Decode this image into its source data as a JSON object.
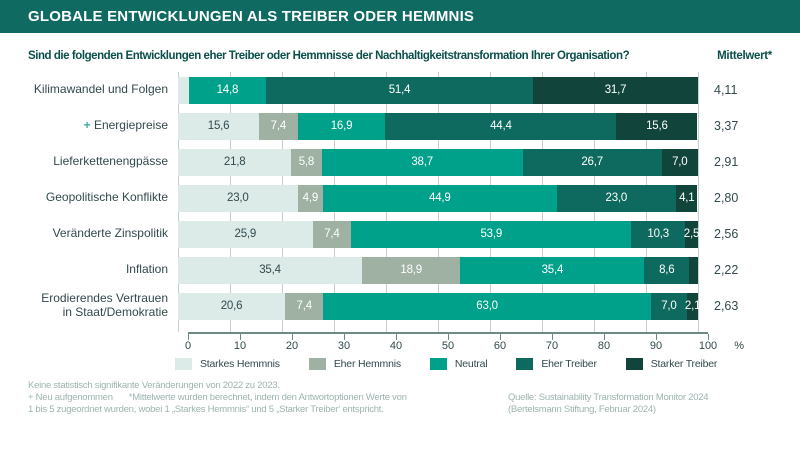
{
  "header": {
    "title": "GLOBALE ENTWICKLUNGEN ALS TREIBER ODER HEMMNIS"
  },
  "question": {
    "text": "Sind die folgenden Entwicklungen eher Treiber oder Hemmnisse der Nachhaltigkeitstransformation Ihrer Organisation?",
    "mittelwert_label": "Mittelwert*"
  },
  "chart_data": {
    "type": "bar",
    "stacked": true,
    "orientation": "horizontal",
    "xlim": [
      0,
      100
    ],
    "x_ticks": [
      0,
      10,
      20,
      30,
      40,
      50,
      60,
      70,
      80,
      90,
      100
    ],
    "axis_suffix": "%",
    "grid": true,
    "legend_position": "bottom",
    "legend": [
      {
        "label": "Starkes Hemmnis",
        "color": "#dcebe8"
      },
      {
        "label": "Eher Hemmnis",
        "color": "#9eb1a3"
      },
      {
        "label": "Neutral",
        "color": "#00a18a"
      },
      {
        "label": "Eher Treiber",
        "color": "#0e695e"
      },
      {
        "label": "Starker Treiber",
        "color": "#11453c"
      }
    ],
    "rows": [
      {
        "category": "Kilimawandel und Folgen",
        "prefix": "",
        "values": [
          2.1,
          0,
          14.8,
          51.4,
          31.7
        ],
        "labels": [
          "",
          "",
          "14,8",
          "51,4",
          "31,7"
        ],
        "mittelwert": "4,11"
      },
      {
        "category": "Energiepreise",
        "prefix": "+ ",
        "values": [
          15.6,
          7.4,
          16.9,
          44.4,
          15.6
        ],
        "labels": [
          "15,6",
          "7,4",
          "16,9",
          "44,4",
          "15,6"
        ],
        "mittelwert": "3,37"
      },
      {
        "category": "Lieferkettenengpässe",
        "prefix": "",
        "values": [
          21.8,
          5.8,
          38.7,
          26.7,
          7.0
        ],
        "labels": [
          "21,8",
          "5,8",
          "38,7",
          "26,7",
          "7,0"
        ],
        "mittelwert": "2,91"
      },
      {
        "category": "Geopolitische Konflikte",
        "prefix": "",
        "values": [
          23.0,
          4.9,
          44.9,
          23.0,
          4.1
        ],
        "labels": [
          "23,0",
          "4,9",
          "44,9",
          "23,0",
          "4,1"
        ],
        "mittelwert": "2,80"
      },
      {
        "category": "Veränderte Zinspolitik",
        "prefix": "",
        "values": [
          25.9,
          7.4,
          53.9,
          10.3,
          2.5
        ],
        "labels": [
          "25,9",
          "7,4",
          "53,9",
          "10,3",
          "2,5"
        ],
        "mittelwert": "2,56"
      },
      {
        "category": "Inflation",
        "prefix": "",
        "values": [
          35.4,
          18.9,
          35.4,
          8.6,
          1.7
        ],
        "labels": [
          "35,4",
          "18,9",
          "35,4",
          "8,6",
          ""
        ],
        "mittelwert": "2,22"
      },
      {
        "category": "Erodierendes Vertrauen\nin Staat/Demokratie",
        "prefix": "",
        "values": [
          20.6,
          7.4,
          63.0,
          7.0,
          2.1
        ],
        "labels": [
          "20,6",
          "7,4",
          "63,0",
          "7,0",
          "2,1"
        ],
        "mittelwert": "2,63"
      }
    ]
  },
  "footnotes": {
    "line1": "Keine statistisch signifikante Veränderungen von 2022 zu 2023.",
    "line2a": "+ Neu aufgenommen",
    "line2b": "*Mittelwerte wurden berechnet, indem den Antwortoptionen Werte von",
    "line3": "1 bis 5 zugeordnet wurden, wobei 1 „Starkes Hemmnis“ und 5 „Starker Treiber‘ entspricht."
  },
  "source": {
    "line1": "Quelle: Sustainability Transformation Monitor 2024",
    "line2": "(Bertelsmann Stiftung, Februar 2024)"
  }
}
